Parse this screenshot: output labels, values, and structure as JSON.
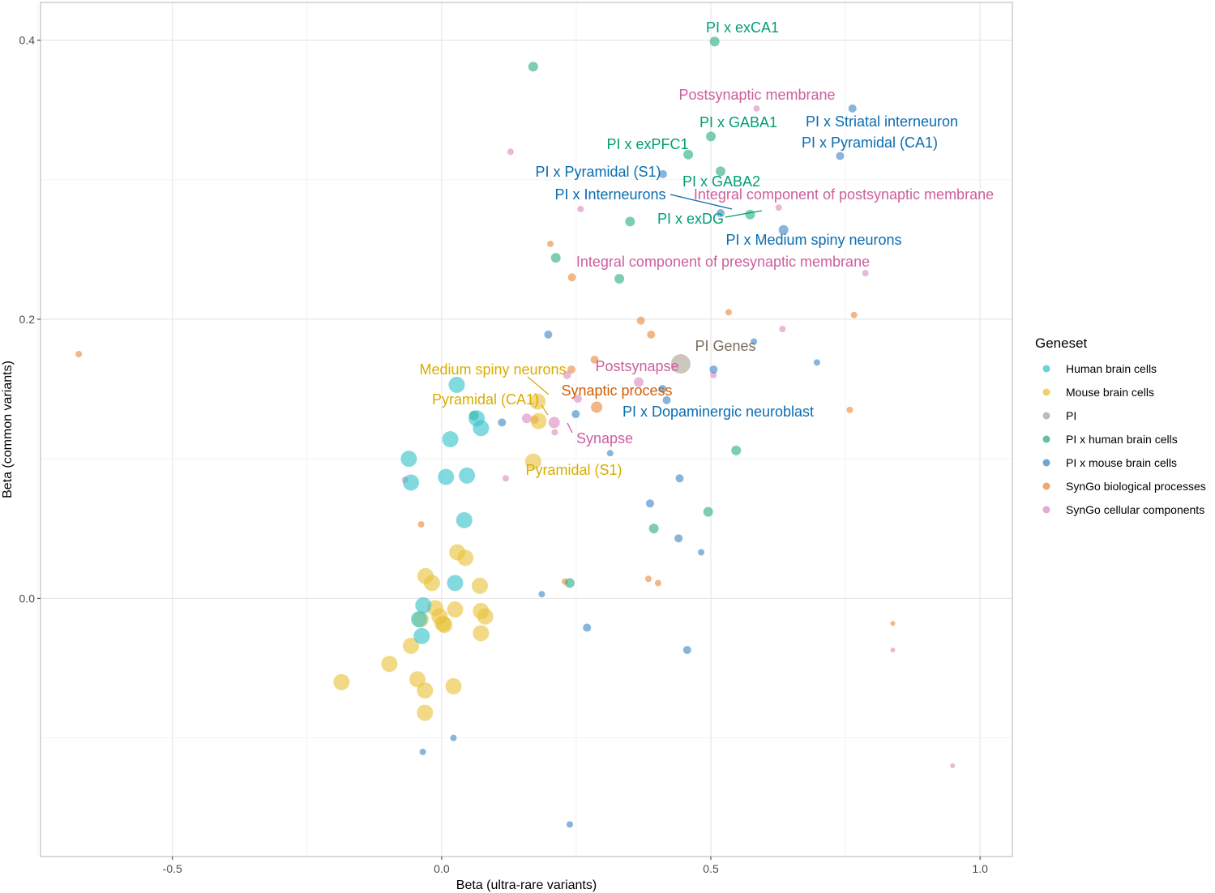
{
  "chart_data": {
    "type": "scatter",
    "title": "",
    "xlabel": "Beta (ultra-rare variants)",
    "ylabel": "Beta (common variants)",
    "xlim": [
      -0.745,
      1.06
    ],
    "ylim": [
      -0.185,
      0.427
    ],
    "x_ticks": [
      -0.5,
      0.0,
      0.5,
      1.0
    ],
    "x_tick_labels": [
      "-0.5",
      "0.0",
      "0.5",
      "1.0"
    ],
    "y_ticks": [
      0.0,
      0.2,
      0.4
    ],
    "y_tick_labels": [
      "0.0",
      "0.2",
      "0.4"
    ],
    "grid": true,
    "legend": {
      "title": "Geneset",
      "position": "right",
      "entries": [
        {
          "key": "human",
          "label": "Human brain cells",
          "color": "#35C4CB"
        },
        {
          "key": "mouse",
          "label": "Mouse brain cells",
          "color": "#E8C13A"
        },
        {
          "key": "pi",
          "label": "PI",
          "color": "#ABA497"
        },
        {
          "key": "pih",
          "label": "PI x human brain cells",
          "color": "#2DAE80"
        },
        {
          "key": "pim",
          "label": "PI x mouse brain cells",
          "color": "#3E88C6"
        },
        {
          "key": "bio",
          "label": "SynGo biological processes",
          "color": "#E88A3C"
        },
        {
          "key": "cel",
          "label": "SynGo cellular components",
          "color": "#DB8DC0"
        }
      ]
    },
    "series": [
      {
        "key": "human",
        "points": [
          [
            0.028,
            0.153,
            10
          ],
          [
            0.016,
            0.114,
            10
          ],
          [
            0.073,
            0.122,
            10
          ],
          [
            0.065,
            0.129,
            10
          ],
          [
            -0.061,
            0.1,
            10
          ],
          [
            -0.057,
            0.083,
            10
          ],
          [
            0.008,
            0.087,
            10
          ],
          [
            0.047,
            0.088,
            10
          ],
          [
            0.042,
            0.056,
            10
          ],
          [
            0.025,
            0.011,
            10
          ],
          [
            -0.034,
            -0.005,
            10
          ],
          [
            -0.042,
            -0.015,
            10
          ],
          [
            -0.037,
            -0.027,
            10
          ]
        ]
      },
      {
        "key": "mouse",
        "points": [
          [
            0.178,
            0.141,
            10
          ],
          [
            0.18,
            0.127,
            10
          ],
          [
            0.17,
            0.098,
            10
          ],
          [
            0.029,
            0.033,
            10
          ],
          [
            0.044,
            0.029,
            10
          ],
          [
            -0.03,
            0.016,
            10
          ],
          [
            -0.018,
            0.011,
            10
          ],
          [
            0.071,
            0.009,
            10
          ],
          [
            -0.012,
            -0.007,
            10
          ],
          [
            0.025,
            -0.008,
            10
          ],
          [
            0.073,
            -0.009,
            10
          ],
          [
            0.081,
            -0.013,
            10
          ],
          [
            -0.004,
            -0.013,
            10
          ],
          [
            0.002,
            -0.018,
            10
          ],
          [
            0.005,
            -0.019,
            10
          ],
          [
            -0.039,
            -0.015,
            10
          ],
          [
            0.073,
            -0.025,
            10
          ],
          [
            -0.057,
            -0.034,
            10
          ],
          [
            -0.097,
            -0.047,
            10
          ],
          [
            -0.186,
            -0.06,
            10
          ],
          [
            -0.045,
            -0.058,
            10
          ],
          [
            -0.031,
            -0.066,
            10
          ],
          [
            0.022,
            -0.063,
            10
          ],
          [
            -0.031,
            -0.082,
            10
          ]
        ]
      },
      {
        "key": "pi",
        "points": [
          [
            0.444,
            0.168,
            12
          ]
        ]
      },
      {
        "key": "pih",
        "points": [
          [
            0.507,
            0.399,
            6
          ],
          [
            0.17,
            0.381,
            6
          ],
          [
            0.5,
            0.331,
            6
          ],
          [
            0.458,
            0.318,
            6
          ],
          [
            0.518,
            0.306,
            6
          ],
          [
            0.573,
            0.275,
            6
          ],
          [
            0.35,
            0.27,
            6
          ],
          [
            0.212,
            0.244,
            6
          ],
          [
            0.33,
            0.229,
            6
          ],
          [
            0.547,
            0.106,
            6
          ],
          [
            0.495,
            0.062,
            6
          ],
          [
            0.394,
            0.05,
            6
          ],
          [
            0.238,
            0.011,
            6
          ],
          [
            0.06,
            0.131,
            6
          ]
        ]
      },
      {
        "key": "pim",
        "points": [
          [
            0.763,
            0.351,
            5
          ],
          [
            0.74,
            0.317,
            5
          ],
          [
            0.411,
            0.304,
            5
          ],
          [
            0.518,
            0.276,
            5
          ],
          [
            0.635,
            0.264,
            6
          ],
          [
            0.198,
            0.189,
            5
          ],
          [
            0.58,
            0.184,
            4
          ],
          [
            0.697,
            0.169,
            4
          ],
          [
            0.505,
            0.164,
            5
          ],
          [
            0.41,
            0.15,
            5
          ],
          [
            0.418,
            0.142,
            5
          ],
          [
            0.249,
            0.132,
            5
          ],
          [
            0.112,
            0.126,
            5
          ],
          [
            0.313,
            0.104,
            4
          ],
          [
            0.442,
            0.086,
            5
          ],
          [
            0.387,
            0.068,
            5
          ],
          [
            0.44,
            0.043,
            5
          ],
          [
            0.482,
            0.033,
            4
          ],
          [
            0.186,
            0.003,
            4
          ],
          [
            0.27,
            -0.021,
            5
          ],
          [
            0.456,
            -0.037,
            5
          ],
          [
            0.022,
            -0.1,
            4
          ],
          [
            -0.035,
            -0.11,
            4
          ],
          [
            0.238,
            -0.162,
            4
          ]
        ]
      },
      {
        "key": "bio",
        "points": [
          [
            -0.674,
            0.175,
            4
          ],
          [
            0.202,
            0.254,
            4
          ],
          [
            0.242,
            0.23,
            5
          ],
          [
            0.533,
            0.205,
            4
          ],
          [
            0.766,
            0.203,
            4
          ],
          [
            0.37,
            0.199,
            5
          ],
          [
            0.389,
            0.189,
            5
          ],
          [
            0.241,
            0.164,
            5
          ],
          [
            0.284,
            0.171,
            5
          ],
          [
            0.288,
            0.137,
            7
          ],
          [
            0.173,
            0.128,
            5
          ],
          [
            0.758,
            0.135,
            4
          ],
          [
            -0.038,
            0.053,
            4
          ],
          [
            0.229,
            0.012,
            4
          ],
          [
            0.384,
            0.014,
            4
          ],
          [
            0.402,
            0.011,
            4
          ],
          [
            0.838,
            -0.018,
            3
          ]
        ]
      },
      {
        "key": "cel",
        "points": [
          [
            0.585,
            0.351,
            4
          ],
          [
            0.128,
            0.32,
            4
          ],
          [
            0.258,
            0.279,
            4
          ],
          [
            0.626,
            0.28,
            4
          ],
          [
            0.787,
            0.233,
            4
          ],
          [
            0.633,
            0.193,
            4
          ],
          [
            0.233,
            0.16,
            5
          ],
          [
            0.505,
            0.16,
            4
          ],
          [
            0.366,
            0.155,
            6
          ],
          [
            0.253,
            0.143,
            5
          ],
          [
            0.158,
            0.129,
            6
          ],
          [
            0.209,
            0.126,
            7
          ],
          [
            0.21,
            0.119,
            4
          ],
          [
            0.119,
            0.086,
            4
          ],
          [
            -0.068,
            0.085,
            4
          ],
          [
            0.838,
            -0.037,
            3
          ],
          [
            0.949,
            -0.12,
            3
          ]
        ]
      }
    ],
    "annotations": [
      {
        "text": "PI x exCA1",
        "group": "pih"
      },
      {
        "text": "Postsynaptic membrane",
        "group": "cel"
      },
      {
        "text": "PI x GABA1",
        "group": "pih"
      },
      {
        "text": "PI x Striatal interneuron",
        "group": "pim"
      },
      {
        "text": "PI x exPFC1",
        "group": "pih"
      },
      {
        "text": "PI x Pyramidal (CA1)",
        "group": "pim"
      },
      {
        "text": "PI x Pyramidal (S1)",
        "group": "pim"
      },
      {
        "text": "PI x GABA2",
        "group": "pih"
      },
      {
        "text": "PI x Interneurons",
        "group": "pim"
      },
      {
        "text": "Integral component of postsynaptic membrane",
        "group": "cel"
      },
      {
        "text": "PI x exDG",
        "group": "pih"
      },
      {
        "text": "PI x Medium spiny neurons",
        "group": "pim"
      },
      {
        "text": "Integral component of presynaptic membrane",
        "group": "cel"
      },
      {
        "text": "PI Genes",
        "group": "pi"
      },
      {
        "text": "Postsynapse",
        "group": "cel"
      },
      {
        "text": "Medium spiny neurons",
        "group": "mouse"
      },
      {
        "text": "Synaptic process",
        "group": "bio"
      },
      {
        "text": "Pyramidal (CA1)",
        "group": "mouse"
      },
      {
        "text": "PI x Dopaminergic neuroblast",
        "group": "pim"
      },
      {
        "text": "Synapse",
        "group": "cel"
      },
      {
        "text": "Pyramidal (S1)",
        "group": "mouse"
      }
    ]
  }
}
